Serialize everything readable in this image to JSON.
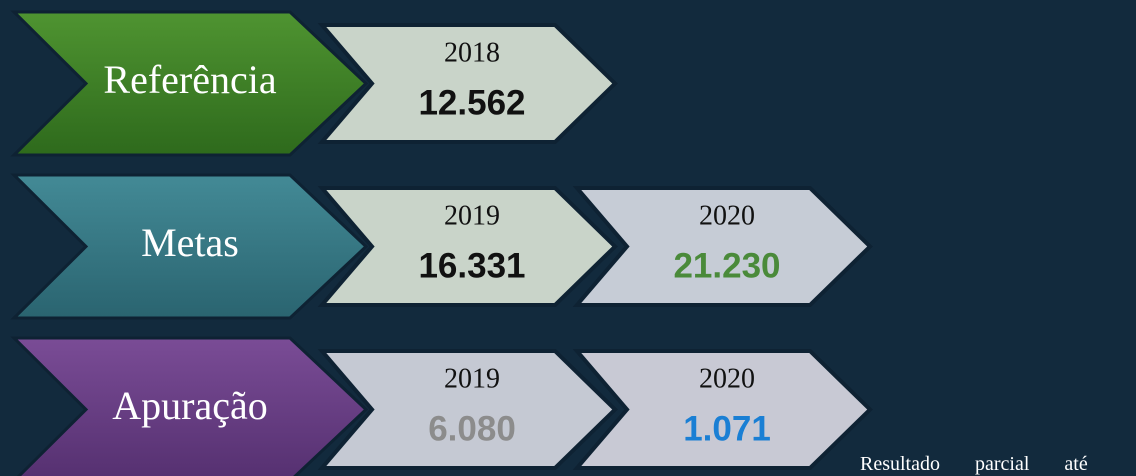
{
  "rows": [
    {
      "label": "Referência",
      "cells": [
        {
          "year": "2018",
          "value": "12.562"
        }
      ]
    },
    {
      "label": "Metas",
      "cells": [
        {
          "year": "2019",
          "value": "16.331"
        },
        {
          "year": "2020",
          "value": "21.230"
        }
      ]
    },
    {
      "label": "Apuração",
      "cells": [
        {
          "year": "2019",
          "value": "6.080"
        },
        {
          "year": "2020",
          "value": "1.071"
        }
      ]
    }
  ],
  "note": "Resultado parcial até"
}
